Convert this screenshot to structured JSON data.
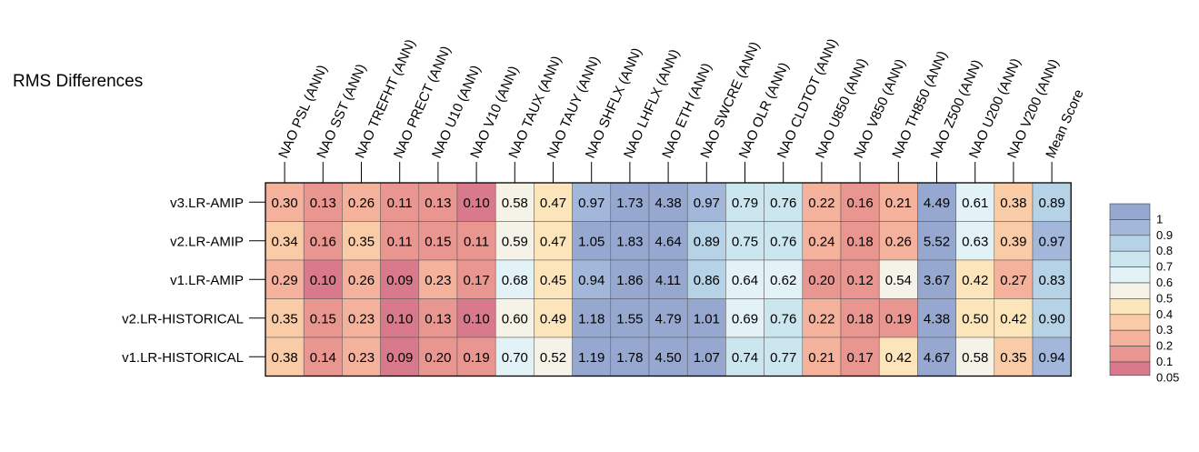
{
  "chart_data": {
    "type": "heatmap",
    "title": "RMS Differences",
    "columns": [
      "NAO PSL (ANN)",
      "NAO SST (ANN)",
      "NAO TREFHT (ANN)",
      "NAO PRECT (ANN)",
      "NAO U10 (ANN)",
      "NAO V10 (ANN)",
      "NAO TAUX (ANN)",
      "NAO TAUY (ANN)",
      "NAO SHFLX (ANN)",
      "NAO LHFLX (ANN)",
      "NAO ETH (ANN)",
      "NAO SWCRE (ANN)",
      "NAO OLR (ANN)",
      "NAO CLDTOT (ANN)",
      "NAO U850 (ANN)",
      "NAO V850 (ANN)",
      "NAO TH850 (ANN)",
      "NAO Z500 (ANN)",
      "NAO U200 (ANN)",
      "NAO V200 (ANN)",
      "Mean Score"
    ],
    "rows": [
      "v3.LR-AMIP",
      "v2.LR-AMIP",
      "v1.LR-AMIP",
      "v2.LR-HISTORICAL",
      "v1.LR-HISTORICAL"
    ],
    "values": [
      [
        "0.30",
        "0.13",
        "0.26",
        "0.11",
        "0.13",
        "0.10",
        "0.58",
        "0.47",
        "0.97",
        "1.73",
        "4.38",
        "0.97",
        "0.79",
        "0.76",
        "0.22",
        "0.16",
        "0.21",
        "4.49",
        "0.61",
        "0.38",
        "0.89"
      ],
      [
        "0.34",
        "0.16",
        "0.35",
        "0.11",
        "0.15",
        "0.11",
        "0.59",
        "0.47",
        "1.05",
        "1.83",
        "4.64",
        "0.89",
        "0.75",
        "0.76",
        "0.24",
        "0.18",
        "0.26",
        "5.52",
        "0.63",
        "0.39",
        "0.97"
      ],
      [
        "0.29",
        "0.10",
        "0.26",
        "0.09",
        "0.23",
        "0.17",
        "0.68",
        "0.45",
        "0.94",
        "1.86",
        "4.11",
        "0.86",
        "0.64",
        "0.62",
        "0.20",
        "0.12",
        "0.54",
        "3.67",
        "0.42",
        "0.27",
        "0.83"
      ],
      [
        "0.35",
        "0.15",
        "0.23",
        "0.10",
        "0.13",
        "0.10",
        "0.60",
        "0.49",
        "1.18",
        "1.55",
        "4.79",
        "1.01",
        "0.69",
        "0.76",
        "0.22",
        "0.18",
        "0.19",
        "4.38",
        "0.50",
        "0.42",
        "0.90"
      ],
      [
        "0.38",
        "0.14",
        "0.23",
        "0.09",
        "0.20",
        "0.19",
        "0.70",
        "0.52",
        "1.19",
        "1.78",
        "4.50",
        "1.07",
        "0.74",
        "0.77",
        "0.21",
        "0.17",
        "0.42",
        "4.67",
        "0.58",
        "0.35",
        "0.94"
      ]
    ],
    "colorbar": {
      "labels": [
        "1",
        "0.9",
        "0.8",
        "0.7",
        "0.6",
        "0.5",
        "0.4",
        "0.3",
        "0.2",
        "0.1",
        "0.05"
      ],
      "bounds": [
        0.05,
        0.1,
        0.2,
        0.3,
        0.4,
        0.5,
        0.6,
        0.7,
        0.8,
        0.9,
        1
      ],
      "colors": [
        "#d97a8c",
        "#e99590",
        "#f4b19c",
        "#f9cba6",
        "#fde5bb",
        "#f5f3e7",
        "#e3f2f6",
        "#cce6f0",
        "#b6d2e6",
        "#a2b7d9",
        "#96a8d0"
      ]
    }
  }
}
